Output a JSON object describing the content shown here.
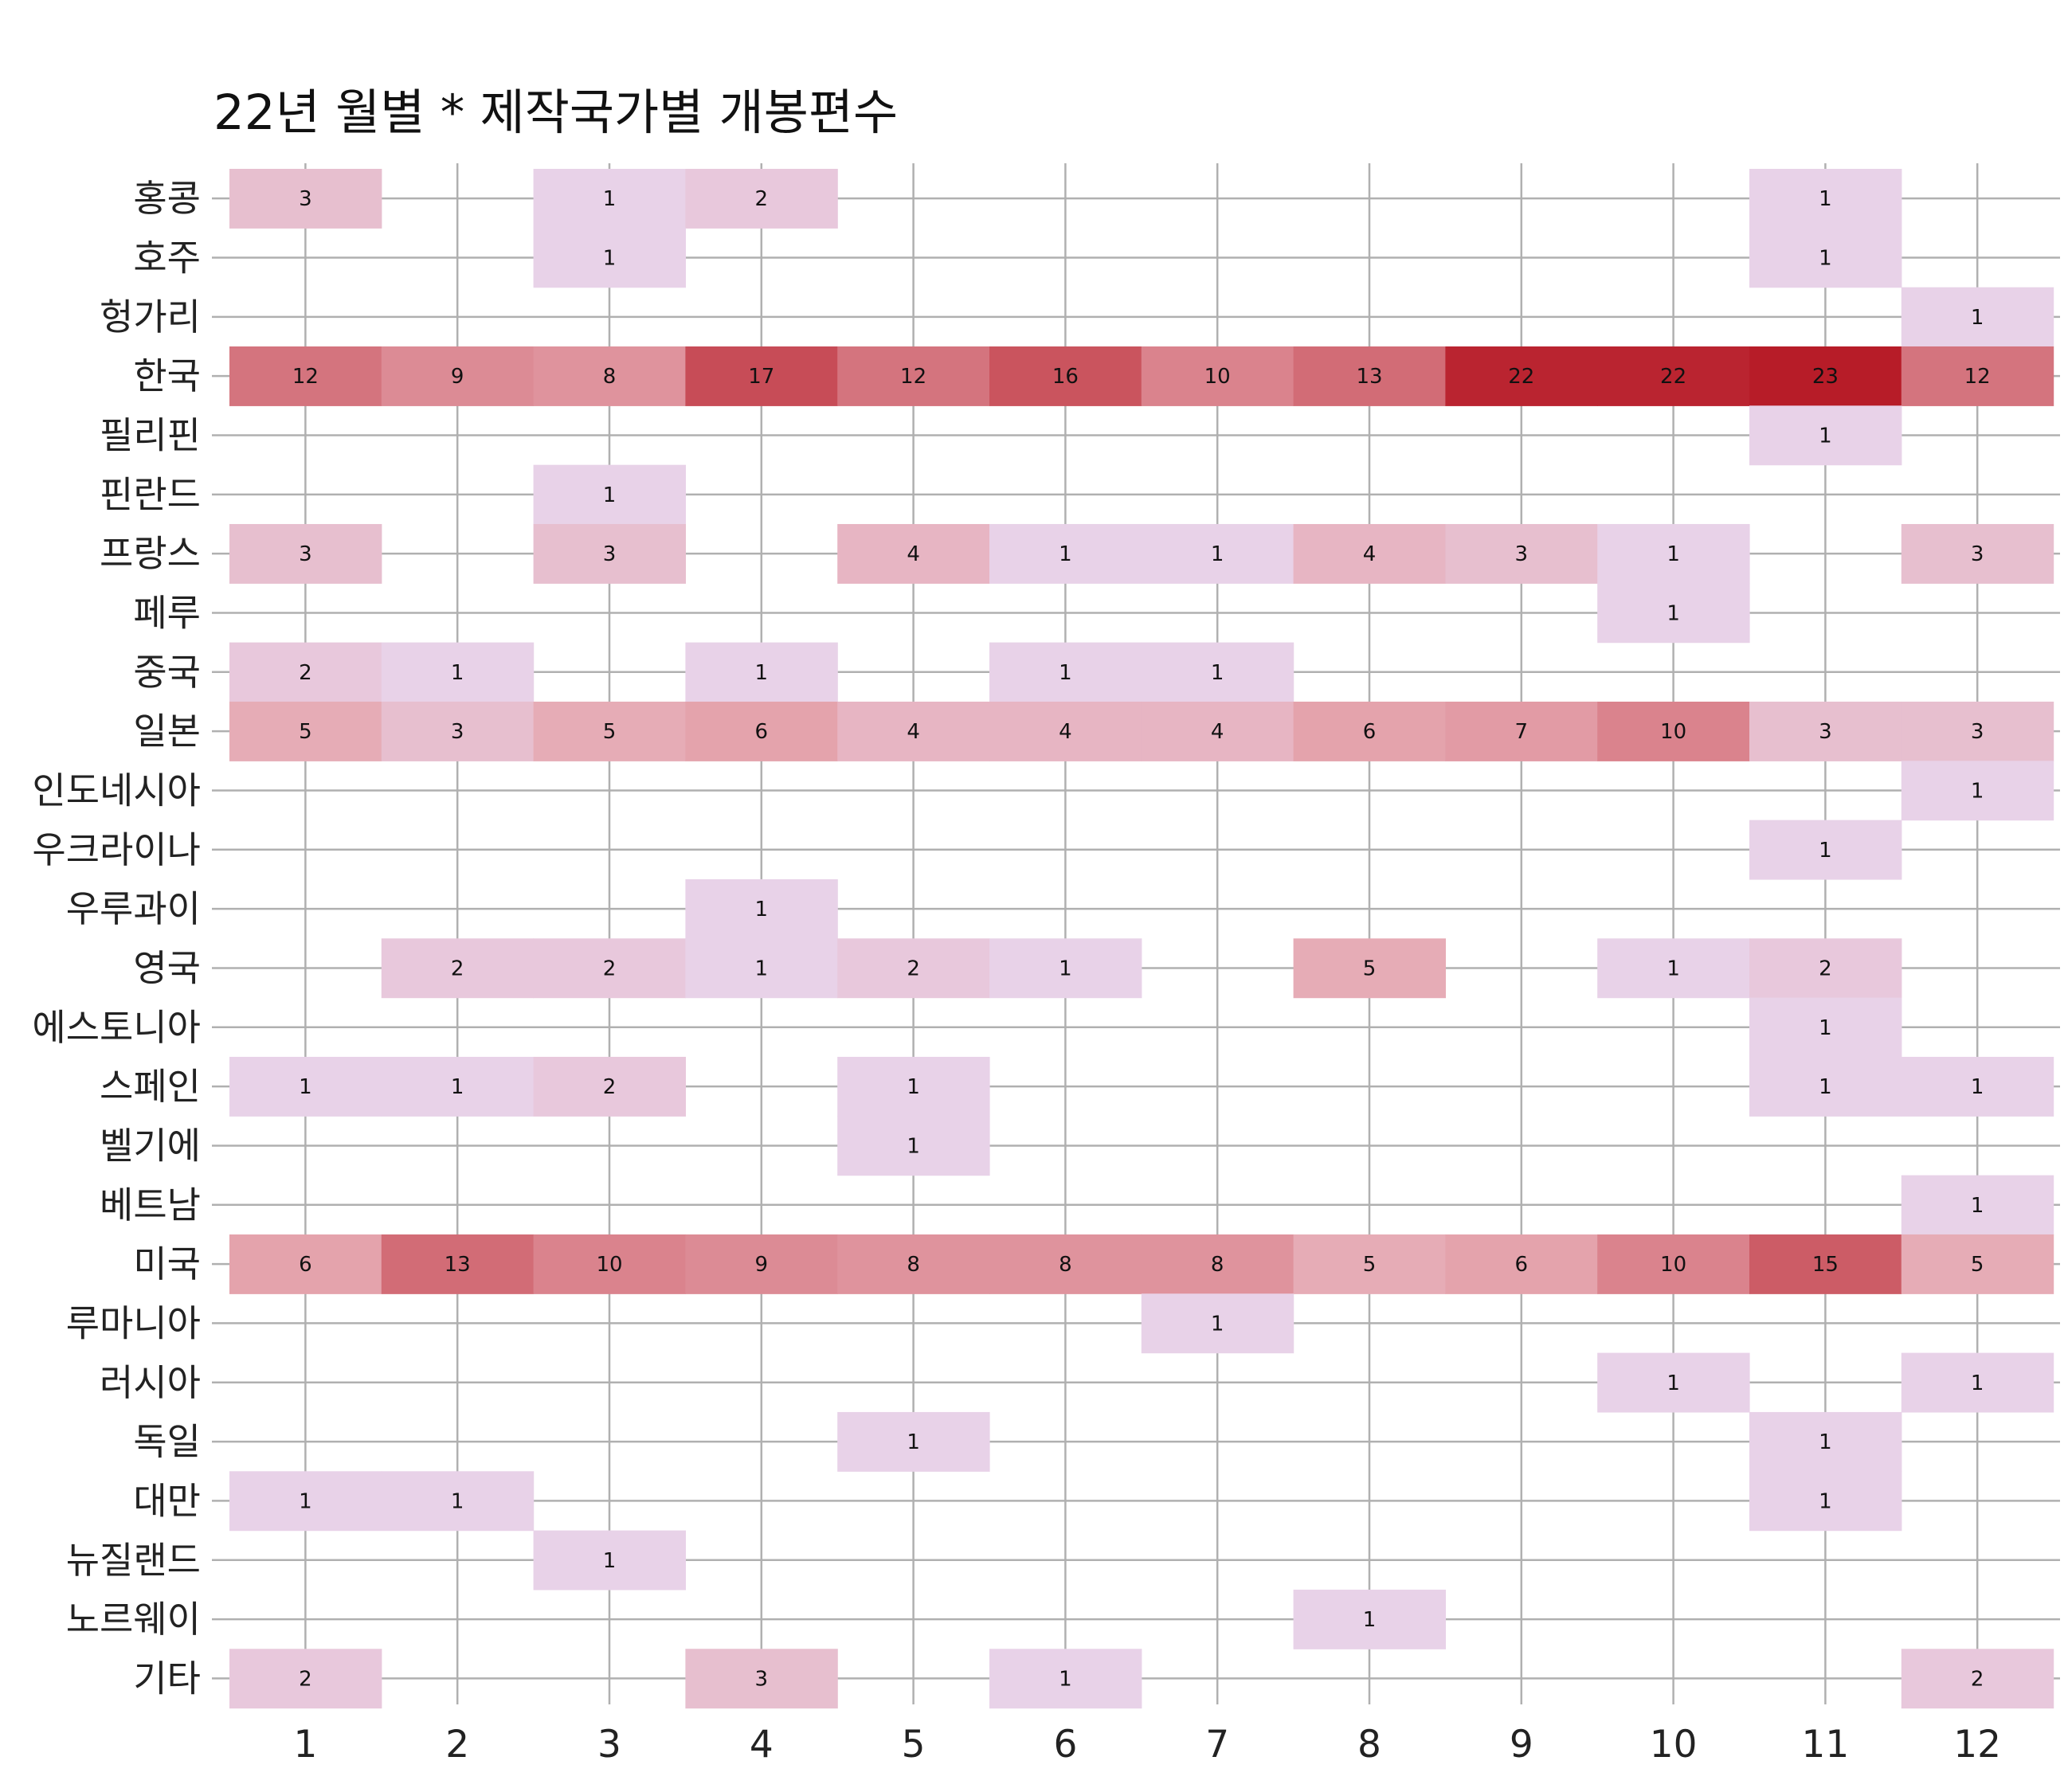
{
  "chart_data": {
    "type": "heatmap",
    "title": "22년 월별 * 제작국가별 개봉편수",
    "xlabel": "",
    "ylabel": "",
    "grid": true,
    "legend": "none",
    "colors": {
      "low": "#e8d2e8",
      "mid": "#e6a8b1",
      "high": "#b71c28",
      "grid": "#b0b0b0"
    },
    "x": [
      "1",
      "2",
      "3",
      "4",
      "5",
      "6",
      "7",
      "8",
      "9",
      "10",
      "11",
      "12"
    ],
    "y": [
      "홍콩",
      "호주",
      "헝가리",
      "한국",
      "필리핀",
      "핀란드",
      "프랑스",
      "페루",
      "중국",
      "일본",
      "인도네시아",
      "우크라이나",
      "우루과이",
      "영국",
      "에스토니아",
      "스페인",
      "벨기에",
      "베트남",
      "미국",
      "루마니아",
      "러시아",
      "독일",
      "대만",
      "뉴질랜드",
      "노르웨이",
      "기타"
    ],
    "values": [
      [
        3,
        null,
        1,
        2,
        null,
        null,
        null,
        null,
        null,
        null,
        1,
        null
      ],
      [
        null,
        null,
        1,
        null,
        null,
        null,
        null,
        null,
        null,
        null,
        1,
        null
      ],
      [
        null,
        null,
        null,
        null,
        null,
        null,
        null,
        null,
        null,
        null,
        null,
        1
      ],
      [
        12,
        9,
        8,
        17,
        12,
        16,
        10,
        13,
        22,
        22,
        23,
        12
      ],
      [
        null,
        null,
        null,
        null,
        null,
        null,
        null,
        null,
        null,
        null,
        1,
        null
      ],
      [
        null,
        null,
        1,
        null,
        null,
        null,
        null,
        null,
        null,
        null,
        null,
        null
      ],
      [
        3,
        null,
        3,
        null,
        4,
        1,
        1,
        4,
        3,
        1,
        null,
        3
      ],
      [
        null,
        null,
        null,
        null,
        null,
        null,
        null,
        null,
        null,
        1,
        null,
        null
      ],
      [
        2,
        1,
        null,
        1,
        null,
        1,
        1,
        null,
        null,
        null,
        null,
        null
      ],
      [
        5,
        3,
        5,
        6,
        4,
        4,
        4,
        6,
        7,
        10,
        3,
        3
      ],
      [
        null,
        null,
        null,
        null,
        null,
        null,
        null,
        null,
        null,
        null,
        null,
        1
      ],
      [
        null,
        null,
        null,
        null,
        null,
        null,
        null,
        null,
        null,
        null,
        1,
        null
      ],
      [
        null,
        null,
        null,
        1,
        null,
        null,
        null,
        null,
        null,
        null,
        null,
        null
      ],
      [
        null,
        2,
        2,
        1,
        2,
        1,
        null,
        5,
        null,
        1,
        2,
        null
      ],
      [
        null,
        null,
        null,
        null,
        null,
        null,
        null,
        null,
        null,
        null,
        1,
        null
      ],
      [
        1,
        1,
        2,
        null,
        1,
        null,
        null,
        null,
        null,
        null,
        1,
        1
      ],
      [
        null,
        null,
        null,
        null,
        1,
        null,
        null,
        null,
        null,
        null,
        null,
        null
      ],
      [
        null,
        null,
        null,
        null,
        null,
        null,
        null,
        null,
        null,
        null,
        null,
        1
      ],
      [
        6,
        13,
        10,
        9,
        8,
        8,
        8,
        5,
        6,
        10,
        15,
        5
      ],
      [
        null,
        null,
        null,
        null,
        null,
        null,
        1,
        null,
        null,
        null,
        null,
        null
      ],
      [
        null,
        null,
        null,
        null,
        null,
        null,
        null,
        null,
        null,
        1,
        null,
        1
      ],
      [
        null,
        null,
        null,
        null,
        1,
        null,
        null,
        null,
        null,
        null,
        1,
        null
      ],
      [
        1,
        1,
        null,
        null,
        null,
        null,
        null,
        null,
        null,
        null,
        1,
        null
      ],
      [
        null,
        null,
        1,
        null,
        null,
        null,
        null,
        null,
        null,
        null,
        null,
        null
      ],
      [
        null,
        null,
        null,
        null,
        null,
        null,
        null,
        1,
        null,
        null,
        null,
        null
      ],
      [
        2,
        null,
        null,
        3,
        null,
        1,
        null,
        null,
        null,
        null,
        null,
        2
      ]
    ],
    "vmin": 1,
    "vmax": 23
  }
}
